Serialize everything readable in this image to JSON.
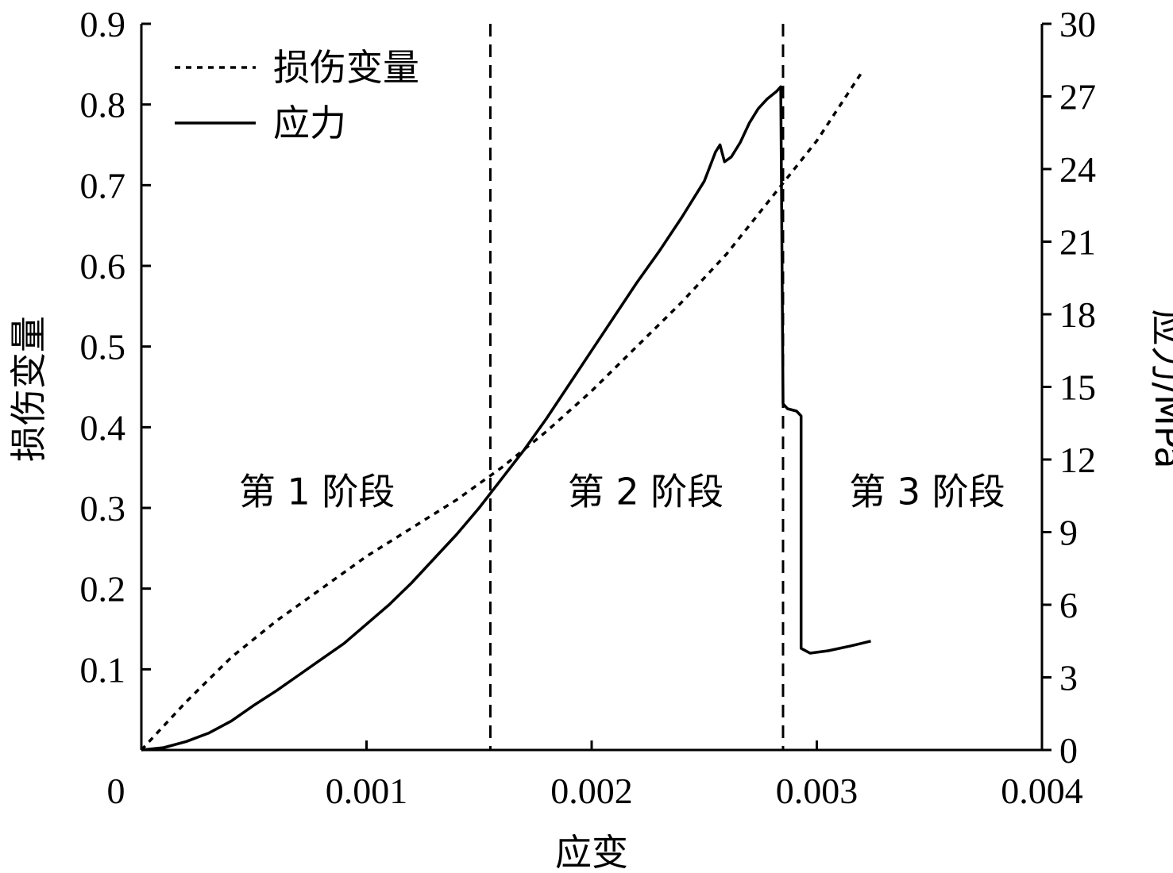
{
  "chart_data": {
    "type": "line",
    "xlabel": "应变",
    "ylabel_left": "损伤变量",
    "ylabel_right": "应力/MPa",
    "xlim": [
      0,
      0.004
    ],
    "ylim_left": [
      0,
      0.9
    ],
    "ylim_right": [
      0,
      30
    ],
    "x_ticks": [
      {
        "value": 0,
        "label": "0"
      },
      {
        "value": 0.001,
        "label": "0.001"
      },
      {
        "value": 0.002,
        "label": "0.002"
      },
      {
        "value": 0.003,
        "label": "0.003"
      },
      {
        "value": 0.004,
        "label": "0.004"
      }
    ],
    "y_left_ticks": [
      {
        "value": 0.1,
        "label": "0.1"
      },
      {
        "value": 0.2,
        "label": "0.2"
      },
      {
        "value": 0.3,
        "label": "0.3"
      },
      {
        "value": 0.4,
        "label": "0.4"
      },
      {
        "value": 0.5,
        "label": "0.5"
      },
      {
        "value": 0.6,
        "label": "0.6"
      },
      {
        "value": 0.7,
        "label": "0.7"
      },
      {
        "value": 0.8,
        "label": "0.8"
      },
      {
        "value": 0.9,
        "label": "0.9"
      }
    ],
    "y_right_ticks": [
      {
        "value": 0,
        "label": "0"
      },
      {
        "value": 3,
        "label": "3"
      },
      {
        "value": 6,
        "label": "6"
      },
      {
        "value": 9,
        "label": "9"
      },
      {
        "value": 12,
        "label": "12"
      },
      {
        "value": 15,
        "label": "15"
      },
      {
        "value": 18,
        "label": "18"
      },
      {
        "value": 21,
        "label": "21"
      },
      {
        "value": 24,
        "label": "24"
      },
      {
        "value": 27,
        "label": "27"
      },
      {
        "value": 30,
        "label": "30"
      }
    ],
    "legend": {
      "position": "top-left",
      "entries": [
        {
          "label": "损伤变量",
          "style": "dotted"
        },
        {
          "label": "应力",
          "style": "solid"
        }
      ]
    },
    "phase_boundaries": [
      0.00155,
      0.00285
    ],
    "phase_labels": [
      {
        "label": "第 1 阶段",
        "x": 0.00078,
        "y": 0.32
      },
      {
        "label": "第 2 阶段",
        "x": 0.00224,
        "y": 0.32
      },
      {
        "label": "第 3 阶段",
        "x": 0.00349,
        "y": 0.32
      }
    ],
    "series": [
      {
        "name": "损伤变量",
        "axis": "left",
        "style": "dotted",
        "points": [
          [
            0,
            0
          ],
          [
            0.0002,
            0.06
          ],
          [
            0.0004,
            0.115
          ],
          [
            0.0006,
            0.16
          ],
          [
            0.0008,
            0.2
          ],
          [
            0.001,
            0.24
          ],
          [
            0.0012,
            0.275
          ],
          [
            0.0014,
            0.31
          ],
          [
            0.0016,
            0.35
          ],
          [
            0.0018,
            0.395
          ],
          [
            0.002,
            0.445
          ],
          [
            0.0022,
            0.5
          ],
          [
            0.0024,
            0.555
          ],
          [
            0.0026,
            0.615
          ],
          [
            0.0028,
            0.685
          ],
          [
            0.003,
            0.755
          ],
          [
            0.0032,
            0.84
          ]
        ]
      },
      {
        "name": "应力",
        "axis": "right",
        "style": "solid",
        "points": [
          [
            0,
            0
          ],
          [
            0.0001,
            0.1
          ],
          [
            0.0002,
            0.35
          ],
          [
            0.0003,
            0.7
          ],
          [
            0.0004,
            1.2
          ],
          [
            0.0005,
            1.85
          ],
          [
            0.0006,
            2.45
          ],
          [
            0.0007,
            3.1
          ],
          [
            0.0008,
            3.75
          ],
          [
            0.0009,
            4.4
          ],
          [
            0.001,
            5.2
          ],
          [
            0.0011,
            6.0
          ],
          [
            0.0012,
            6.9
          ],
          [
            0.0013,
            7.9
          ],
          [
            0.0014,
            8.9
          ],
          [
            0.0015,
            10.0
          ],
          [
            0.0016,
            11.2
          ],
          [
            0.0017,
            12.4
          ],
          [
            0.0018,
            13.7
          ],
          [
            0.0019,
            15.1
          ],
          [
            0.002,
            16.5
          ],
          [
            0.0021,
            17.9
          ],
          [
            0.0022,
            19.3
          ],
          [
            0.0023,
            20.6
          ],
          [
            0.0024,
            22.0
          ],
          [
            0.0025,
            23.5
          ],
          [
            0.00255,
            24.7
          ],
          [
            0.00257,
            25.0
          ],
          [
            0.00259,
            24.3
          ],
          [
            0.00262,
            24.5
          ],
          [
            0.00266,
            25.1
          ],
          [
            0.0027,
            25.9
          ],
          [
            0.00274,
            26.5
          ],
          [
            0.00278,
            26.9
          ],
          [
            0.00282,
            27.2
          ],
          [
            0.00284,
            27.4
          ],
          [
            0.00285,
            14.3
          ],
          [
            0.00287,
            14.1
          ],
          [
            0.00291,
            14.0
          ],
          [
            0.00293,
            13.8
          ],
          [
            0.00293,
            4.2
          ],
          [
            0.00297,
            4.0
          ],
          [
            0.00305,
            4.1
          ],
          [
            0.00315,
            4.3
          ],
          [
            0.00324,
            4.5
          ]
        ]
      }
    ]
  }
}
